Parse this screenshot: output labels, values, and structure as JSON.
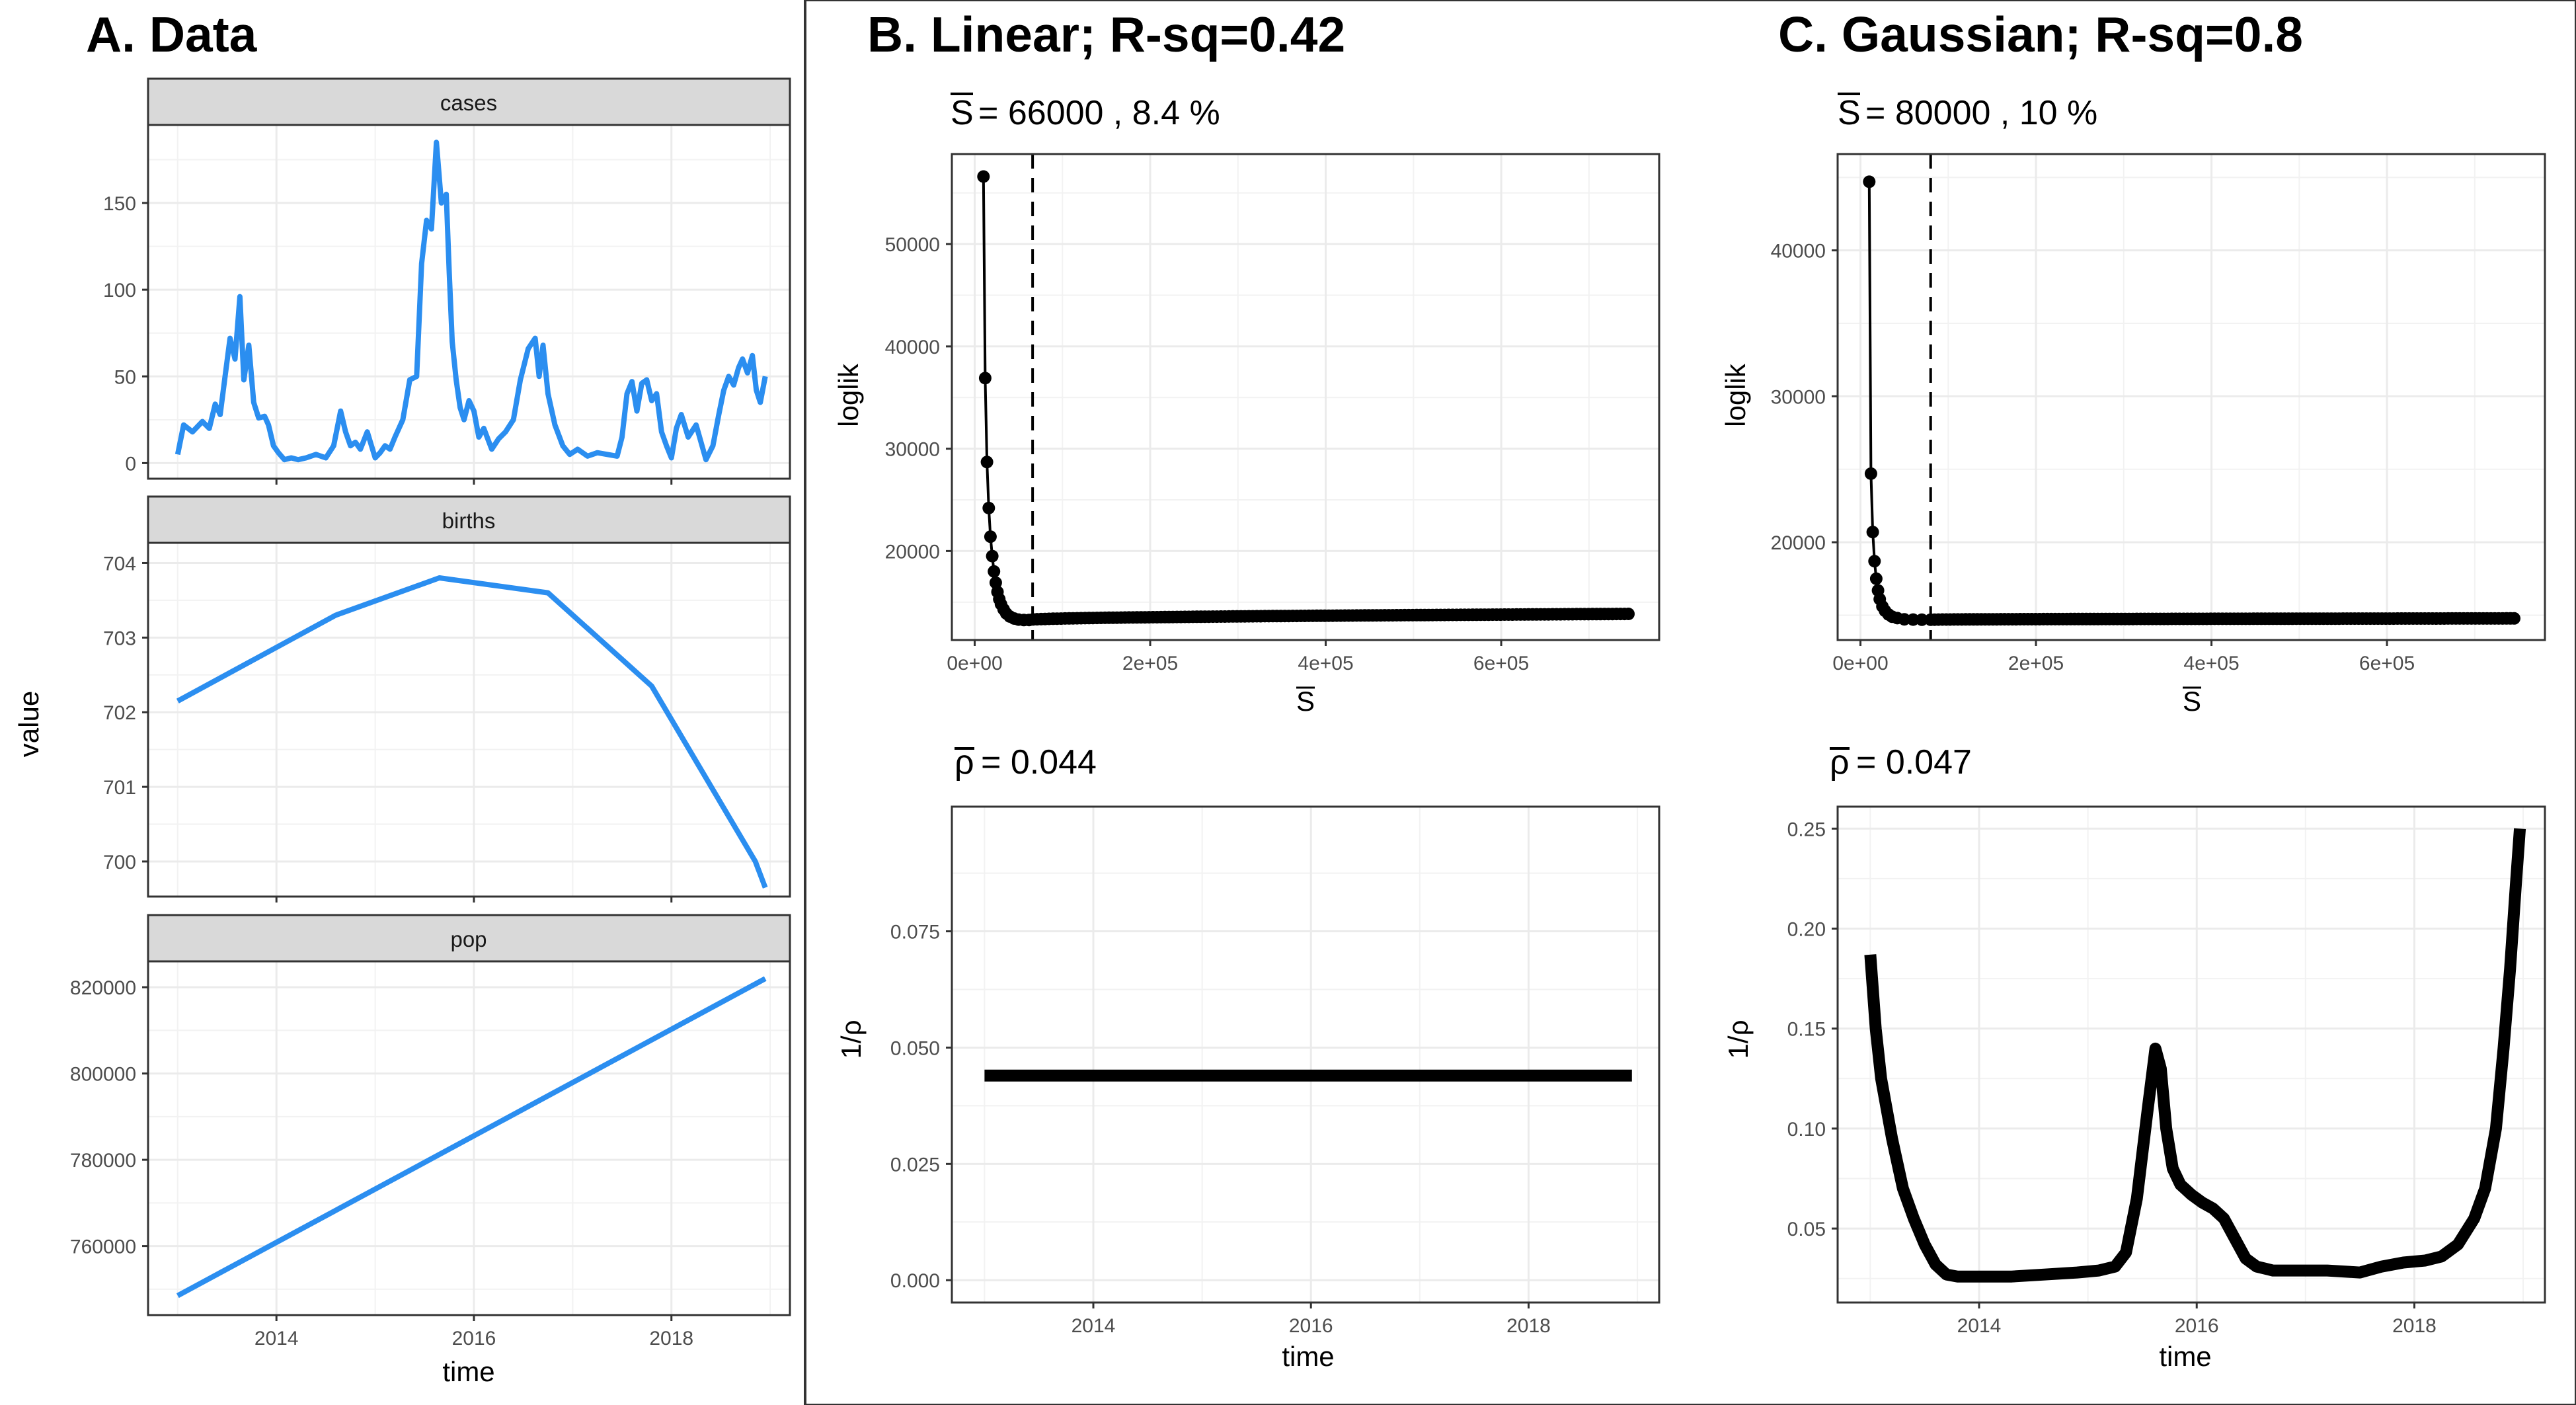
{
  "panels": {
    "a_title": "A. Data",
    "b_title": "B. Linear; R-sq=0.42",
    "c_title": "C. Gaussian; R-sq=0.8",
    "b_s_sub": "= 66000 , 8.4 %",
    "c_s_sub": "= 80000 , 10 %",
    "b_rho_sub": "= 0.044",
    "c_rho_sub": "= 0.047",
    "s_symbol": "S",
    "rho_symbol": "ρ"
  },
  "axis_labels": {
    "value": "value",
    "time": "time",
    "loglik": "loglik",
    "inv_rho": "1/ρ"
  },
  "chart_data": [
    {
      "id": "cases",
      "type": "line",
      "strip": "cases",
      "color": "#2b8ef0",
      "xlim": [
        2012.7,
        2019.2
      ],
      "ylim": [
        -9,
        195
      ],
      "x_ticks": [
        2014,
        2016,
        2018
      ],
      "y_ticks": [
        0,
        50,
        100,
        150
      ],
      "y_tick_labels": [
        "0",
        "50",
        "100",
        "150"
      ],
      "x": [
        2013.0,
        2013.06,
        2013.15,
        2013.25,
        2013.32,
        2013.38,
        2013.43,
        2013.48,
        2013.53,
        2013.58,
        2013.63,
        2013.67,
        2013.72,
        2013.77,
        2013.82,
        2013.88,
        2013.92,
        2013.97,
        2014.02,
        2014.08,
        2014.15,
        2014.22,
        2014.3,
        2014.4,
        2014.5,
        2014.58,
        2014.65,
        2014.7,
        2014.75,
        2014.8,
        2014.85,
        2014.92,
        2015.0,
        2015.05,
        2015.1,
        2015.15,
        2015.2,
        2015.28,
        2015.35,
        2015.42,
        2015.47,
        2015.52,
        2015.57,
        2015.62,
        2015.67,
        2015.72,
        2015.75,
        2015.78,
        2015.82,
        2015.86,
        2015.9,
        2015.95,
        2016.0,
        2016.05,
        2016.1,
        2016.18,
        2016.25,
        2016.32,
        2016.4,
        2016.47,
        2016.55,
        2016.62,
        2016.66,
        2016.7,
        2016.75,
        2016.82,
        2016.9,
        2016.97,
        2017.05,
        2017.15,
        2017.25,
        2017.35,
        2017.45,
        2017.5,
        2017.55,
        2017.6,
        2017.65,
        2017.7,
        2017.75,
        2017.8,
        2017.85,
        2017.9,
        2017.95,
        2018.0,
        2018.05,
        2018.1,
        2018.17,
        2018.25,
        2018.35,
        2018.42,
        2018.48,
        2018.53,
        2018.58,
        2018.63,
        2018.68,
        2018.72,
        2018.77,
        2018.82,
        2018.86,
        2018.9,
        2018.95
      ],
      "values": [
        5,
        22,
        18,
        24,
        20,
        34,
        28,
        50,
        72,
        60,
        96,
        48,
        68,
        35,
        26,
        27,
        22,
        10,
        6,
        2,
        3,
        2,
        3,
        5,
        3,
        10,
        30,
        18,
        10,
        12,
        8,
        18,
        3,
        6,
        10,
        8,
        15,
        25,
        48,
        50,
        115,
        140,
        135,
        185,
        150,
        155,
        110,
        70,
        48,
        32,
        25,
        36,
        30,
        15,
        20,
        8,
        14,
        18,
        25,
        48,
        66,
        72,
        50,
        68,
        40,
        22,
        10,
        5,
        8,
        4,
        6,
        5,
        4,
        15,
        40,
        47,
        30,
        46,
        48,
        36,
        40,
        18,
        10,
        3,
        20,
        28,
        15,
        22,
        2,
        10,
        28,
        42,
        50,
        45,
        55,
        60,
        52,
        62,
        42,
        35,
        50
      ]
    },
    {
      "id": "births",
      "type": "line",
      "strip": "births",
      "color": "#2b8ef0",
      "xlim": [
        2012.7,
        2019.2
      ],
      "ylim": [
        699.53,
        704.27
      ],
      "x_ticks": [
        2014,
        2016,
        2018
      ],
      "y_ticks": [
        700,
        701,
        702,
        703,
        704
      ],
      "y_tick_labels": [
        "700",
        "701",
        "702",
        "703",
        "704"
      ],
      "x": [
        2013.0,
        2014.6,
        2015.65,
        2016.75,
        2017.8,
        2018.85,
        2018.95
      ],
      "values": [
        702.15,
        703.3,
        703.8,
        703.6,
        702.35,
        700.0,
        699.65
      ]
    },
    {
      "id": "pop",
      "type": "line",
      "strip": "pop",
      "color": "#2b8ef0",
      "xlim": [
        2012.7,
        2019.2
      ],
      "ylim": [
        744000,
        826000
      ],
      "x_ticks": [
        2014,
        2016,
        2018
      ],
      "x_tick_labels": [
        "2014",
        "2016",
        "2018"
      ],
      "y_ticks": [
        760000,
        780000,
        800000,
        820000
      ],
      "y_tick_labels": [
        "760000",
        "780000",
        "800000",
        "820000"
      ],
      "x": [
        2013.0,
        2018.95
      ],
      "values": [
        748500,
        822000
      ]
    },
    {
      "id": "b_loglik",
      "type": "scatter",
      "color": "#000000",
      "xlim": [
        -26000,
        780000
      ],
      "ylim": [
        11300,
        58800
      ],
      "x_ticks": [
        0,
        200000,
        400000,
        600000
      ],
      "x_tick_labels": [
        "0e+00",
        "2e+05",
        "4e+05",
        "6e+05"
      ],
      "y_ticks": [
        20000,
        30000,
        40000,
        50000
      ],
      "y_tick_labels": [
        "20000",
        "30000",
        "40000",
        "50000"
      ],
      "vline": 66000,
      "x_range": [
        10000,
        745000
      ],
      "head_points": [
        [
          10000,
          56600
        ],
        [
          12000,
          36900
        ],
        [
          14000,
          28700
        ],
        [
          16000,
          24200
        ],
        [
          18000,
          21400
        ],
        [
          20000,
          19500
        ],
        [
          22000,
          18000
        ],
        [
          24000,
          16900
        ],
        [
          26000,
          16000
        ],
        [
          28000,
          15300
        ],
        [
          30000,
          14800
        ],
        [
          33000,
          14300
        ],
        [
          36000,
          13900
        ],
        [
          40000,
          13600
        ],
        [
          45000,
          13400
        ],
        [
          50000,
          13300
        ],
        [
          56000,
          13250
        ],
        [
          62000,
          13260
        ]
      ],
      "tail_start": 62000,
      "tail_value_start": 13260,
      "tail_value_end": 13850
    },
    {
      "id": "b_rho",
      "type": "line",
      "color": "#000000",
      "xlim": [
        2012.7,
        2019.2
      ],
      "ylim": [
        -0.0048,
        0.1018
      ],
      "x_ticks": [
        2014,
        2016,
        2018
      ],
      "x_tick_labels": [
        "2014",
        "2016",
        "2018"
      ],
      "y_ticks": [
        0.0,
        0.025,
        0.05,
        0.075
      ],
      "y_tick_labels": [
        "0.000",
        "0.025",
        "0.050",
        "0.075"
      ],
      "x": [
        2013.0,
        2018.95
      ],
      "values": [
        0.044,
        0.044
      ]
    },
    {
      "id": "c_loglik",
      "type": "scatter",
      "color": "#000000",
      "xlim": [
        -26000,
        780000
      ],
      "ylim": [
        13300,
        46600
      ],
      "x_ticks": [
        0,
        200000,
        400000,
        600000
      ],
      "x_tick_labels": [
        "0e+00",
        "2e+05",
        "4e+05",
        "6e+05"
      ],
      "y_ticks": [
        20000,
        30000,
        40000
      ],
      "y_tick_labels": [
        "20000",
        "30000",
        "40000"
      ],
      "vline": 80000,
      "x_range": [
        10000,
        745000
      ],
      "head_points": [
        [
          10000,
          44700
        ],
        [
          12000,
          24700
        ],
        [
          14000,
          20700
        ],
        [
          16000,
          18700
        ],
        [
          18000,
          17500
        ],
        [
          20000,
          16700
        ],
        [
          22000,
          16100
        ],
        [
          25000,
          15600
        ],
        [
          28000,
          15300
        ],
        [
          32000,
          15050
        ],
        [
          36000,
          14900
        ],
        [
          42000,
          14800
        ],
        [
          50000,
          14720
        ],
        [
          60000,
          14700
        ],
        [
          70000,
          14690
        ],
        [
          80000,
          14690
        ]
      ],
      "tail_start": 80000,
      "tail_value_start": 14690,
      "tail_value_end": 14780
    },
    {
      "id": "c_rho",
      "type": "line",
      "color": "#000000",
      "xlim": [
        2012.7,
        2019.2
      ],
      "ylim": [
        0.013,
        0.261
      ],
      "x_ticks": [
        2014,
        2016,
        2018
      ],
      "x_tick_labels": [
        "2014",
        "2016",
        "2018"
      ],
      "y_ticks": [
        0.05,
        0.1,
        0.15,
        0.2,
        0.25
      ],
      "y_tick_labels": [
        "0.05",
        "0.10",
        "0.15",
        "0.20",
        "0.25"
      ],
      "x": [
        2013.0,
        2013.05,
        2013.1,
        2013.2,
        2013.3,
        2013.4,
        2013.5,
        2013.6,
        2013.7,
        2013.8,
        2014.0,
        2014.3,
        2014.6,
        2014.9,
        2015.1,
        2015.25,
        2015.35,
        2015.45,
        2015.55,
        2015.62,
        2015.67,
        2015.72,
        2015.78,
        2015.85,
        2015.95,
        2016.05,
        2016.15,
        2016.25,
        2016.35,
        2016.45,
        2016.55,
        2016.7,
        2016.9,
        2017.2,
        2017.5,
        2017.7,
        2017.9,
        2018.1,
        2018.25,
        2018.4,
        2018.55,
        2018.65,
        2018.75,
        2018.82,
        2018.88,
        2018.93,
        2018.97
      ],
      "values": [
        0.187,
        0.15,
        0.125,
        0.095,
        0.07,
        0.055,
        0.042,
        0.032,
        0.027,
        0.026,
        0.026,
        0.026,
        0.027,
        0.028,
        0.029,
        0.031,
        0.038,
        0.065,
        0.11,
        0.14,
        0.13,
        0.1,
        0.08,
        0.072,
        0.067,
        0.063,
        0.06,
        0.055,
        0.045,
        0.035,
        0.031,
        0.029,
        0.029,
        0.029,
        0.028,
        0.031,
        0.033,
        0.034,
        0.036,
        0.042,
        0.055,
        0.07,
        0.1,
        0.14,
        0.18,
        0.22,
        0.25
      ]
    }
  ]
}
